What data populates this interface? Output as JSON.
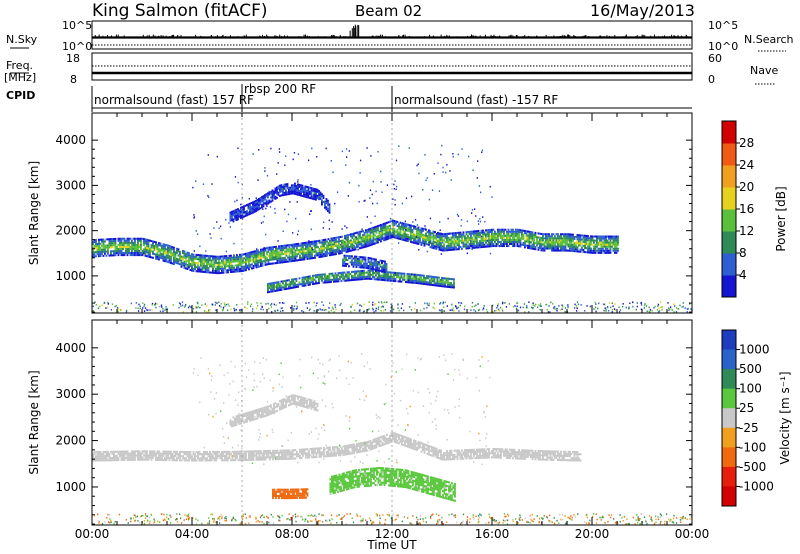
{
  "header": {
    "station": "King Salmon (fitACF)",
    "beam": "Beam 02",
    "date": "16/May/2013"
  },
  "ctrl": {
    "nsky_label": "N.Sky",
    "nsky_ticks": [
      "10^5",
      "10^0"
    ],
    "nsearch_label": "N.Search",
    "nsearch_ticks": [
      "10^5",
      "10^0"
    ],
    "freq_label": "Freq.",
    "freq_unit": "[MHz]",
    "freq_ticks": [
      "18",
      "8"
    ],
    "nave_label": "Nave",
    "nave_ticks": [
      "60",
      "0"
    ],
    "cpid_label": "CPID",
    "cpid_segments": [
      {
        "label": "normalsound (fast) 157 RF",
        "start": 0.0,
        "end": 6.0
      },
      {
        "label": "rbsp 200 RF",
        "start": 6.0,
        "end": 12.0
      },
      {
        "label": "normalsound (fast) -157 RF",
        "start": 12.0,
        "end": 24.0
      }
    ]
  },
  "chart_data": [
    {
      "type": "heatmap",
      "name": "power",
      "ylabel": "Slant Range [km]",
      "xlabel": "",
      "xlim": [
        0,
        24
      ],
      "ylim": [
        180,
        4600
      ],
      "yticks": [
        "1000",
        "2000",
        "3000",
        "4000"
      ],
      "colorbar": {
        "label": "Power [dB]",
        "ticks": [
          "4",
          "8",
          "12",
          "16",
          "20",
          "24",
          "28"
        ],
        "colors": [
          "#1414d2",
          "#2d5fd2",
          "#2e8b57",
          "#5abf3a",
          "#e6d21e",
          "#f0a01e",
          "#f05a14",
          "#d20000"
        ]
      },
      "bands": [
        {
          "x": [
            0.0,
            1.0,
            2.0,
            3.0,
            4.0,
            5.0,
            6.0,
            7.0,
            8.0,
            9.0,
            10.0,
            11.0,
            12.0,
            13.0,
            14.0,
            15.0,
            16.0,
            17.0,
            18.0,
            19.0,
            20.0,
            21.0
          ],
          "y": [
            1620,
            1650,
            1650,
            1500,
            1300,
            1250,
            1300,
            1450,
            1520,
            1600,
            1700,
            1850,
            2050,
            1900,
            1750,
            1800,
            1850,
            1850,
            1750,
            1750,
            1700,
            1700
          ],
          "width": 380,
          "level": 16
        },
        {
          "x": [
            7.0,
            8.0,
            9.0,
            10.0,
            11.0,
            12.0,
            13.0,
            14.0,
            14.5
          ],
          "y": [
            750,
            850,
            950,
            1000,
            1050,
            1000,
            950,
            880,
            850
          ],
          "width": 220,
          "level": 14
        },
        {
          "x": [
            5.5,
            6.5,
            7.5,
            8.0,
            9.0,
            9.5
          ],
          "y": [
            2300,
            2550,
            2900,
            2950,
            2800,
            2500
          ],
          "width": 250,
          "level": 6
        },
        {
          "x": [
            10.0,
            11.0,
            11.8
          ],
          "y": [
            1350,
            1300,
            1200
          ],
          "width": 250,
          "level": 10
        }
      ]
    },
    {
      "type": "heatmap",
      "name": "velocity",
      "ylabel": "Slant Range [km]",
      "xlabel": "Time UT",
      "xlim": [
        0,
        24
      ],
      "ylim": [
        180,
        4600
      ],
      "xticks": [
        "00:00",
        "04:00",
        "08:00",
        "12:00",
        "16:00",
        "20:00",
        "00:00"
      ],
      "yticks": [
        "1000",
        "2000",
        "3000",
        "4000"
      ],
      "colorbar": {
        "label": "Velocity [m s⁻¹]",
        "ticks": [
          "1000",
          "500",
          "100",
          "25",
          "-25",
          "-100",
          "-500",
          "-1000"
        ],
        "colors": [
          "#1e3cbe",
          "#2864c8",
          "#2e8b57",
          "#5ac83c",
          "#c8c8c8",
          "#f0a01e",
          "#f06a10",
          "#e61e0a",
          "#d20000"
        ]
      },
      "bands": [
        {
          "x": [
            0.0,
            2.0,
            4.0,
            6.0,
            8.0,
            10.0,
            11.0,
            12.0,
            13.0,
            14.0,
            16.0,
            18.0,
            19.5
          ],
          "y": [
            1680,
            1700,
            1680,
            1690,
            1720,
            1800,
            1900,
            2100,
            1900,
            1700,
            1750,
            1700,
            1680
          ],
          "width": 220,
          "level": 0
        },
        {
          "x": [
            9.5,
            10.5,
            11.5,
            12.5,
            13.5,
            14.5
          ],
          "y": [
            1050,
            1200,
            1250,
            1200,
            1050,
            900
          ],
          "width": 400,
          "level": 60
        },
        {
          "x": [
            7.2,
            7.8,
            8.6
          ],
          "y": [
            850,
            850,
            860
          ],
          "width": 180,
          "level": -300
        },
        {
          "x": [
            5.5,
            7.0,
            8.0,
            9.0
          ],
          "y": [
            2400,
            2650,
            2900,
            2750
          ],
          "width": 200,
          "level": 0
        }
      ]
    }
  ]
}
